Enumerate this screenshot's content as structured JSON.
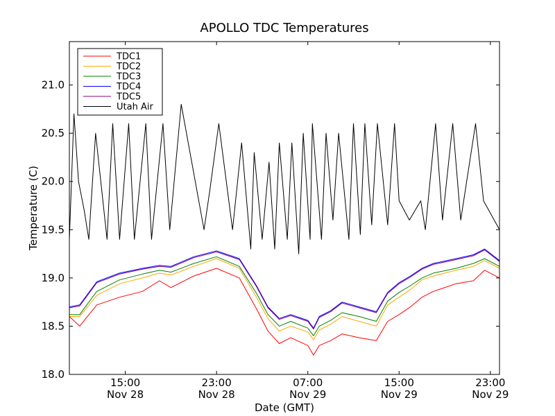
{
  "chart_data": {
    "type": "line",
    "title": "APOLLO TDC Temperatures",
    "xlabel": "Date (GMT)",
    "ylabel": "Temperature (C)",
    "x_unit": "hours since Nov 28 00:00 GMT",
    "xlim": [
      10.1,
      47.8
    ],
    "ylim": [
      18.0,
      21.45
    ],
    "grid": false,
    "legend_position": "top-left",
    "yticks": [
      {
        "value": 18.0,
        "label": "18.0"
      },
      {
        "value": 18.5,
        "label": "18.5"
      },
      {
        "value": 19.0,
        "label": "19.0"
      },
      {
        "value": 19.5,
        "label": "19.5"
      },
      {
        "value": 20.0,
        "label": "20.0"
      },
      {
        "value": 20.5,
        "label": "20.5"
      },
      {
        "value": 21.0,
        "label": "21.0"
      }
    ],
    "xticks": [
      {
        "value": 15,
        "time": "15:00",
        "date": "Nov 28"
      },
      {
        "value": 23,
        "time": "23:00",
        "date": "Nov 28"
      },
      {
        "value": 31,
        "time": "07:00",
        "date": "Nov 29"
      },
      {
        "value": 39,
        "time": "15:00",
        "date": "Nov 29"
      },
      {
        "value": 47,
        "time": "23:00",
        "date": "Nov 29"
      }
    ],
    "series": [
      {
        "name": "TDC1",
        "color": "#ff0000",
        "x": [
          10.1,
          11.0,
          12.5,
          14.5,
          16.5,
          18.0,
          19.0,
          21.0,
          23.0,
          25.0,
          26.5,
          27.5,
          28.5,
          29.5,
          31.0,
          31.5,
          32.0,
          33.0,
          34.0,
          35.5,
          37.0,
          38.0,
          39.0,
          40.0,
          41.0,
          42.0,
          44.0,
          45.5,
          46.5,
          47.8
        ],
        "values": [
          18.6,
          18.5,
          18.72,
          18.8,
          18.86,
          18.97,
          18.9,
          19.02,
          19.1,
          19.0,
          18.68,
          18.45,
          18.32,
          18.38,
          18.3,
          18.2,
          18.3,
          18.35,
          18.42,
          18.38,
          18.35,
          18.55,
          18.62,
          18.7,
          18.8,
          18.86,
          18.94,
          18.97,
          19.08,
          19.0
        ]
      },
      {
        "name": "TDC2",
        "color": "#ffa500",
        "x": [
          10.1,
          11.0,
          12.5,
          14.5,
          16.5,
          18.0,
          19.0,
          21.0,
          23.0,
          25.0,
          26.5,
          27.5,
          28.5,
          29.5,
          31.0,
          31.5,
          32.0,
          33.0,
          34.0,
          35.5,
          37.0,
          38.0,
          39.0,
          40.0,
          41.0,
          42.0,
          44.0,
          45.5,
          46.5,
          47.8
        ],
        "values": [
          18.6,
          18.6,
          18.82,
          18.94,
          19.0,
          19.05,
          19.03,
          19.12,
          19.2,
          19.1,
          18.8,
          18.58,
          18.45,
          18.5,
          18.44,
          18.36,
          18.46,
          18.52,
          18.6,
          18.55,
          18.5,
          18.72,
          18.8,
          18.88,
          18.98,
          19.02,
          19.08,
          19.12,
          19.18,
          19.1
        ]
      },
      {
        "name": "TDC3",
        "color": "#008000",
        "x": [
          10.1,
          11.0,
          12.5,
          14.5,
          16.5,
          18.0,
          19.0,
          21.0,
          23.0,
          25.0,
          26.5,
          27.5,
          28.5,
          29.5,
          31.0,
          31.5,
          32.0,
          33.0,
          34.0,
          35.5,
          37.0,
          38.0,
          39.0,
          40.0,
          41.0,
          42.0,
          44.0,
          45.5,
          46.5,
          47.8
        ],
        "values": [
          18.62,
          18.62,
          18.86,
          18.98,
          19.04,
          19.08,
          19.06,
          19.15,
          19.22,
          19.12,
          18.84,
          18.62,
          18.5,
          18.55,
          18.48,
          18.4,
          18.5,
          18.56,
          18.64,
          18.6,
          18.55,
          18.76,
          18.85,
          18.92,
          19.0,
          19.05,
          19.1,
          19.15,
          19.2,
          19.12
        ]
      },
      {
        "name": "TDC4",
        "color": "#0000ff",
        "x": [
          10.1,
          11.0,
          12.5,
          14.5,
          16.5,
          18.0,
          19.0,
          21.0,
          23.0,
          25.0,
          26.5,
          27.5,
          28.5,
          29.5,
          31.0,
          31.5,
          32.0,
          33.0,
          34.0,
          35.5,
          37.0,
          38.0,
          39.0,
          40.0,
          41.0,
          42.0,
          44.0,
          45.5,
          46.5,
          47.8
        ],
        "values": [
          18.7,
          18.72,
          18.96,
          19.05,
          19.1,
          19.13,
          19.12,
          19.22,
          19.28,
          19.2,
          18.92,
          18.7,
          18.58,
          18.62,
          18.56,
          18.48,
          18.6,
          18.66,
          18.75,
          18.7,
          18.65,
          18.85,
          18.95,
          19.02,
          19.1,
          19.15,
          19.2,
          19.24,
          19.3,
          19.18
        ]
      },
      {
        "name": "TDC5",
        "color": "#800080",
        "x": [
          10.1,
          11.0,
          12.5,
          14.5,
          16.5,
          18.0,
          19.0,
          21.0,
          23.0,
          25.0,
          26.5,
          27.5,
          28.5,
          29.5,
          31.0,
          31.5,
          32.0,
          33.0,
          34.0,
          35.5,
          37.0,
          38.0,
          39.0,
          40.0,
          41.0,
          42.0,
          44.0,
          45.5,
          46.5,
          47.8
        ],
        "values": [
          18.69,
          18.71,
          18.95,
          19.04,
          19.09,
          19.12,
          19.11,
          19.21,
          19.27,
          19.19,
          18.91,
          18.69,
          18.57,
          18.61,
          18.55,
          18.47,
          18.59,
          18.65,
          18.74,
          18.69,
          18.64,
          18.84,
          18.94,
          19.01,
          19.09,
          19.14,
          19.19,
          19.23,
          19.29,
          19.17
        ]
      },
      {
        "name": "Utah Air",
        "color": "#000000",
        "x": [
          10.1,
          10.5,
          10.9,
          11.4,
          11.8,
          12.4,
          13.4,
          13.9,
          14.5,
          15.3,
          15.8,
          16.8,
          17.3,
          18.3,
          18.9,
          19.9,
          21.9,
          22.4,
          23.2,
          24.4,
          25.2,
          26.0,
          26.3,
          27.0,
          27.6,
          28.1,
          28.5,
          29.2,
          29.6,
          30.2,
          30.6,
          31.2,
          31.4,
          32.2,
          32.6,
          33.2,
          33.7,
          34.6,
          35.0,
          35.6,
          36.0,
          36.6,
          37.1,
          38.0,
          38.6,
          39.0,
          39.9,
          40.9,
          41.3,
          42.2,
          42.8,
          43.7,
          44.4,
          45.7,
          46.4,
          47.8
        ],
        "values": [
          19.4,
          20.7,
          20.0,
          19.7,
          19.4,
          20.5,
          19.4,
          20.6,
          19.4,
          20.6,
          19.4,
          20.6,
          19.4,
          20.6,
          19.5,
          20.8,
          19.5,
          19.9,
          20.6,
          19.5,
          20.4,
          19.3,
          20.3,
          19.4,
          20.2,
          19.3,
          20.4,
          19.4,
          20.4,
          19.25,
          20.5,
          19.4,
          20.6,
          19.4,
          20.5,
          19.6,
          20.5,
          19.4,
          20.6,
          19.45,
          20.6,
          19.55,
          20.6,
          19.55,
          20.6,
          19.8,
          19.6,
          19.8,
          19.5,
          20.6,
          19.6,
          20.6,
          19.6,
          20.6,
          19.8,
          19.5
        ]
      }
    ]
  }
}
